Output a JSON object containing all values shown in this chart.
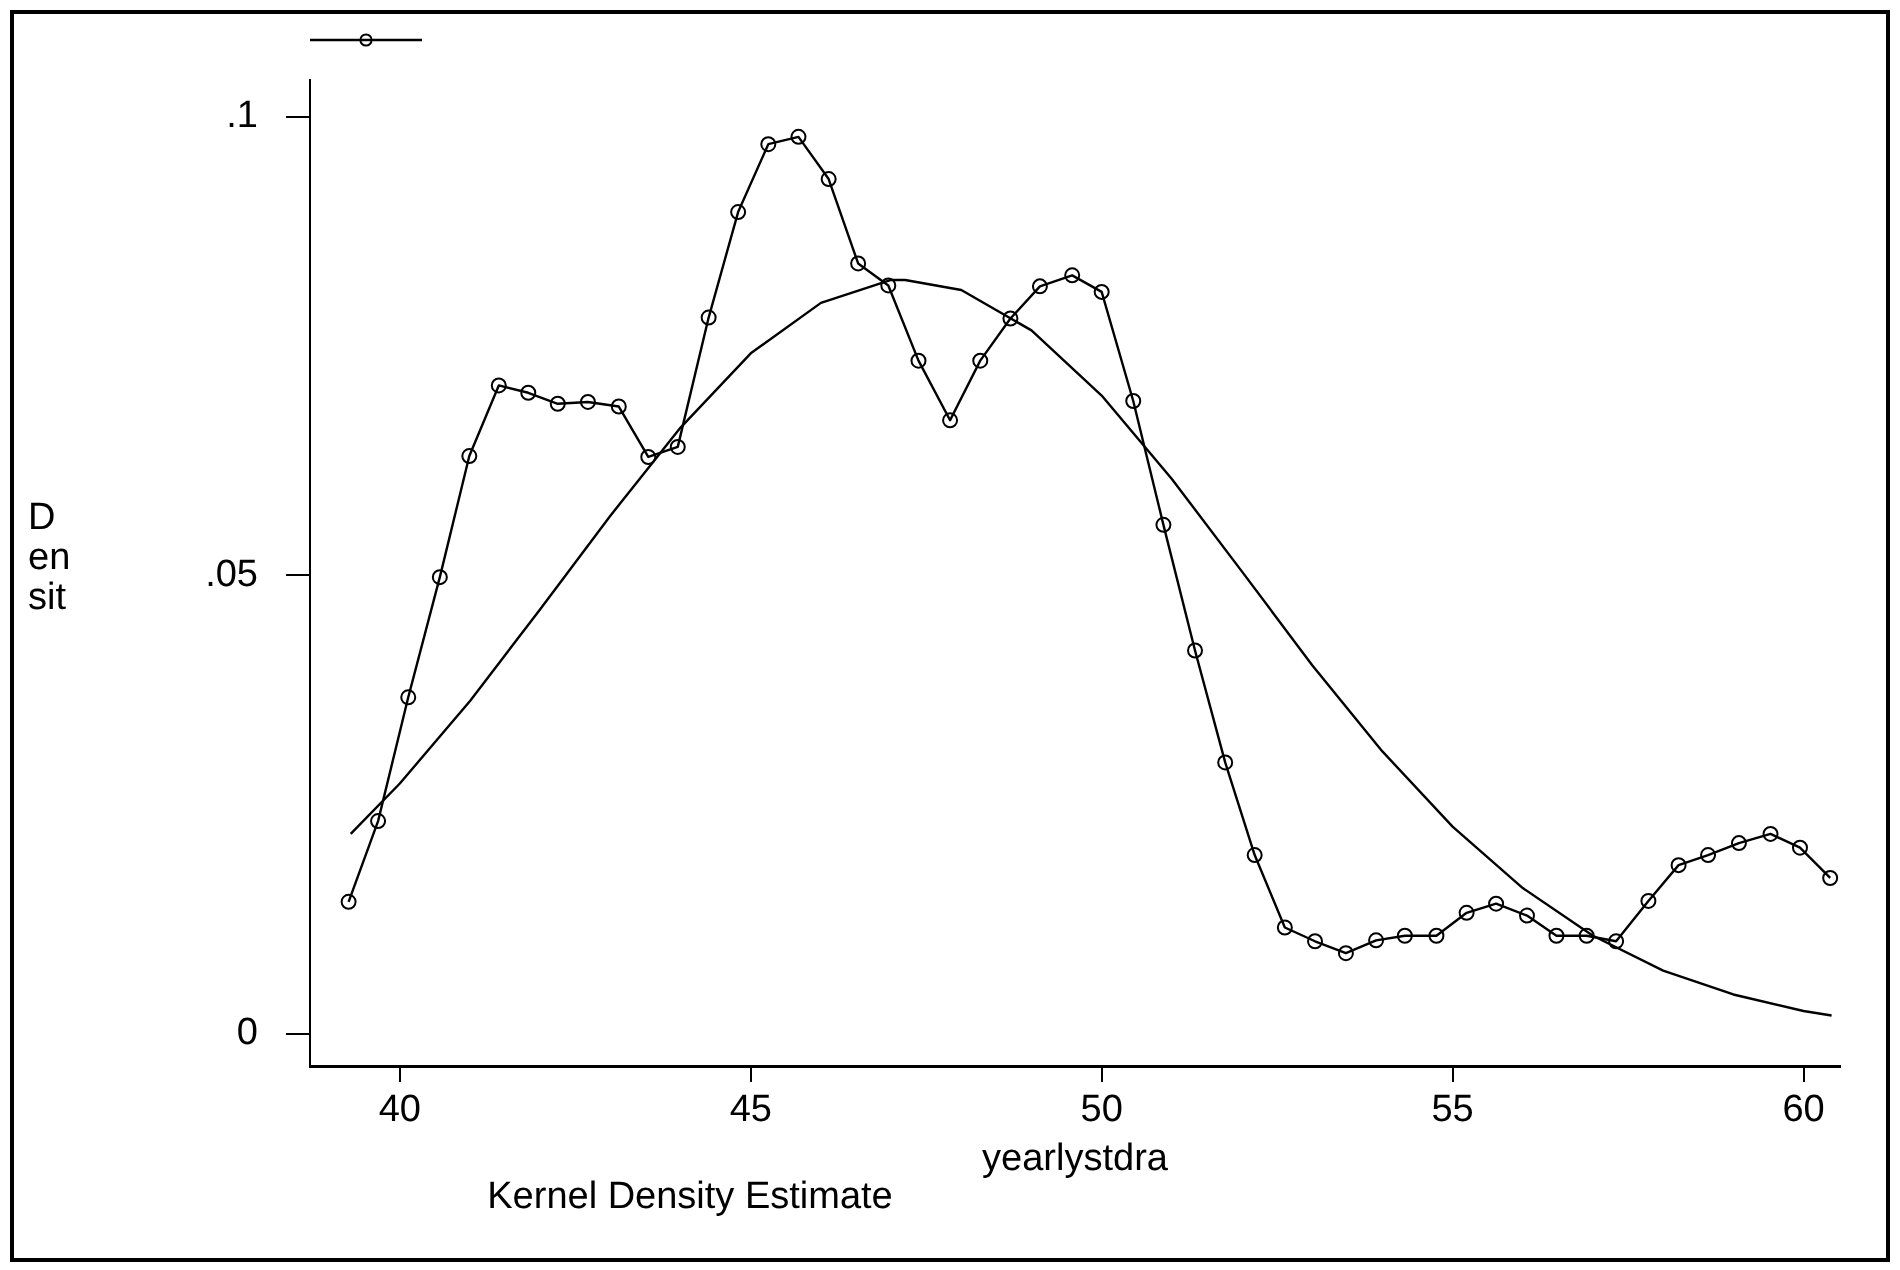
{
  "chart_data": {
    "type": "line",
    "xlabel": "yearlystdra",
    "ylabel": "D en sit",
    "annotations": [
      "Kernel Density Estimate"
    ],
    "xlim": [
      38.72,
      60.52
    ],
    "xticks": [
      40,
      45,
      50,
      55,
      60
    ],
    "ylim": [
      -0.0035,
      0.104
    ],
    "yticks": [
      {
        "value": 0,
        "label": "0"
      },
      {
        "value": 0.05,
        "label": ".05"
      },
      {
        "value": 0.1,
        "label": ".1"
      }
    ],
    "grid": false,
    "series": [
      {
        "color": "#000000",
        "marker": "circle",
        "x": [
          39.27,
          39.69,
          40.12,
          40.57,
          40.99,
          41.41,
          41.83,
          42.25,
          42.68,
          43.12,
          43.54,
          43.96,
          44.4,
          44.82,
          45.25,
          45.68,
          46.11,
          46.53,
          46.96,
          47.39,
          47.84,
          48.27,
          48.7,
          49.12,
          49.58,
          50.0,
          50.45,
          50.88,
          51.33,
          51.76,
          52.18,
          52.61,
          53.04,
          53.48,
          53.91,
          54.32,
          54.77,
          55.2,
          55.62,
          56.06,
          56.48,
          56.91,
          57.33,
          57.79,
          58.22,
          58.64,
          59.08,
          59.53,
          59.95,
          60.38
        ],
        "values": [
          0.0144,
          0.0232,
          0.0367,
          0.0498,
          0.063,
          0.0707,
          0.0699,
          0.0687,
          0.0689,
          0.0684,
          0.0629,
          0.064,
          0.0781,
          0.0896,
          0.097,
          0.0978,
          0.0932,
          0.084,
          0.0816,
          0.0734,
          0.0669,
          0.0734,
          0.078,
          0.0815,
          0.0827,
          0.0809,
          0.069,
          0.0555,
          0.0418,
          0.0296,
          0.0195,
          0.0116,
          0.0101,
          0.0088,
          0.0102,
          0.0107,
          0.0107,
          0.0132,
          0.0142,
          0.0129,
          0.0107,
          0.0107,
          0.0101,
          0.0145,
          0.0184,
          0.0195,
          0.0208,
          0.0218,
          0.0203,
          0.017
        ]
      },
      {
        "color": "#000000",
        "marker": "none",
        "x": [
          39.3,
          40,
          41,
          42,
          43,
          44,
          45,
          46,
          47,
          47.2,
          48,
          49,
          50,
          51,
          52,
          53,
          54,
          55,
          56,
          57,
          58,
          59,
          60,
          60.4
        ],
        "values": [
          0.0218,
          0.0273,
          0.0363,
          0.0463,
          0.0565,
          0.0661,
          0.0742,
          0.0797,
          0.0822,
          0.0822,
          0.0811,
          0.0767,
          0.0696,
          0.0605,
          0.0504,
          0.0402,
          0.0308,
          0.0226,
          0.0159,
          0.0107,
          0.0069,
          0.0043,
          0.0025,
          0.002
        ]
      }
    ]
  }
}
